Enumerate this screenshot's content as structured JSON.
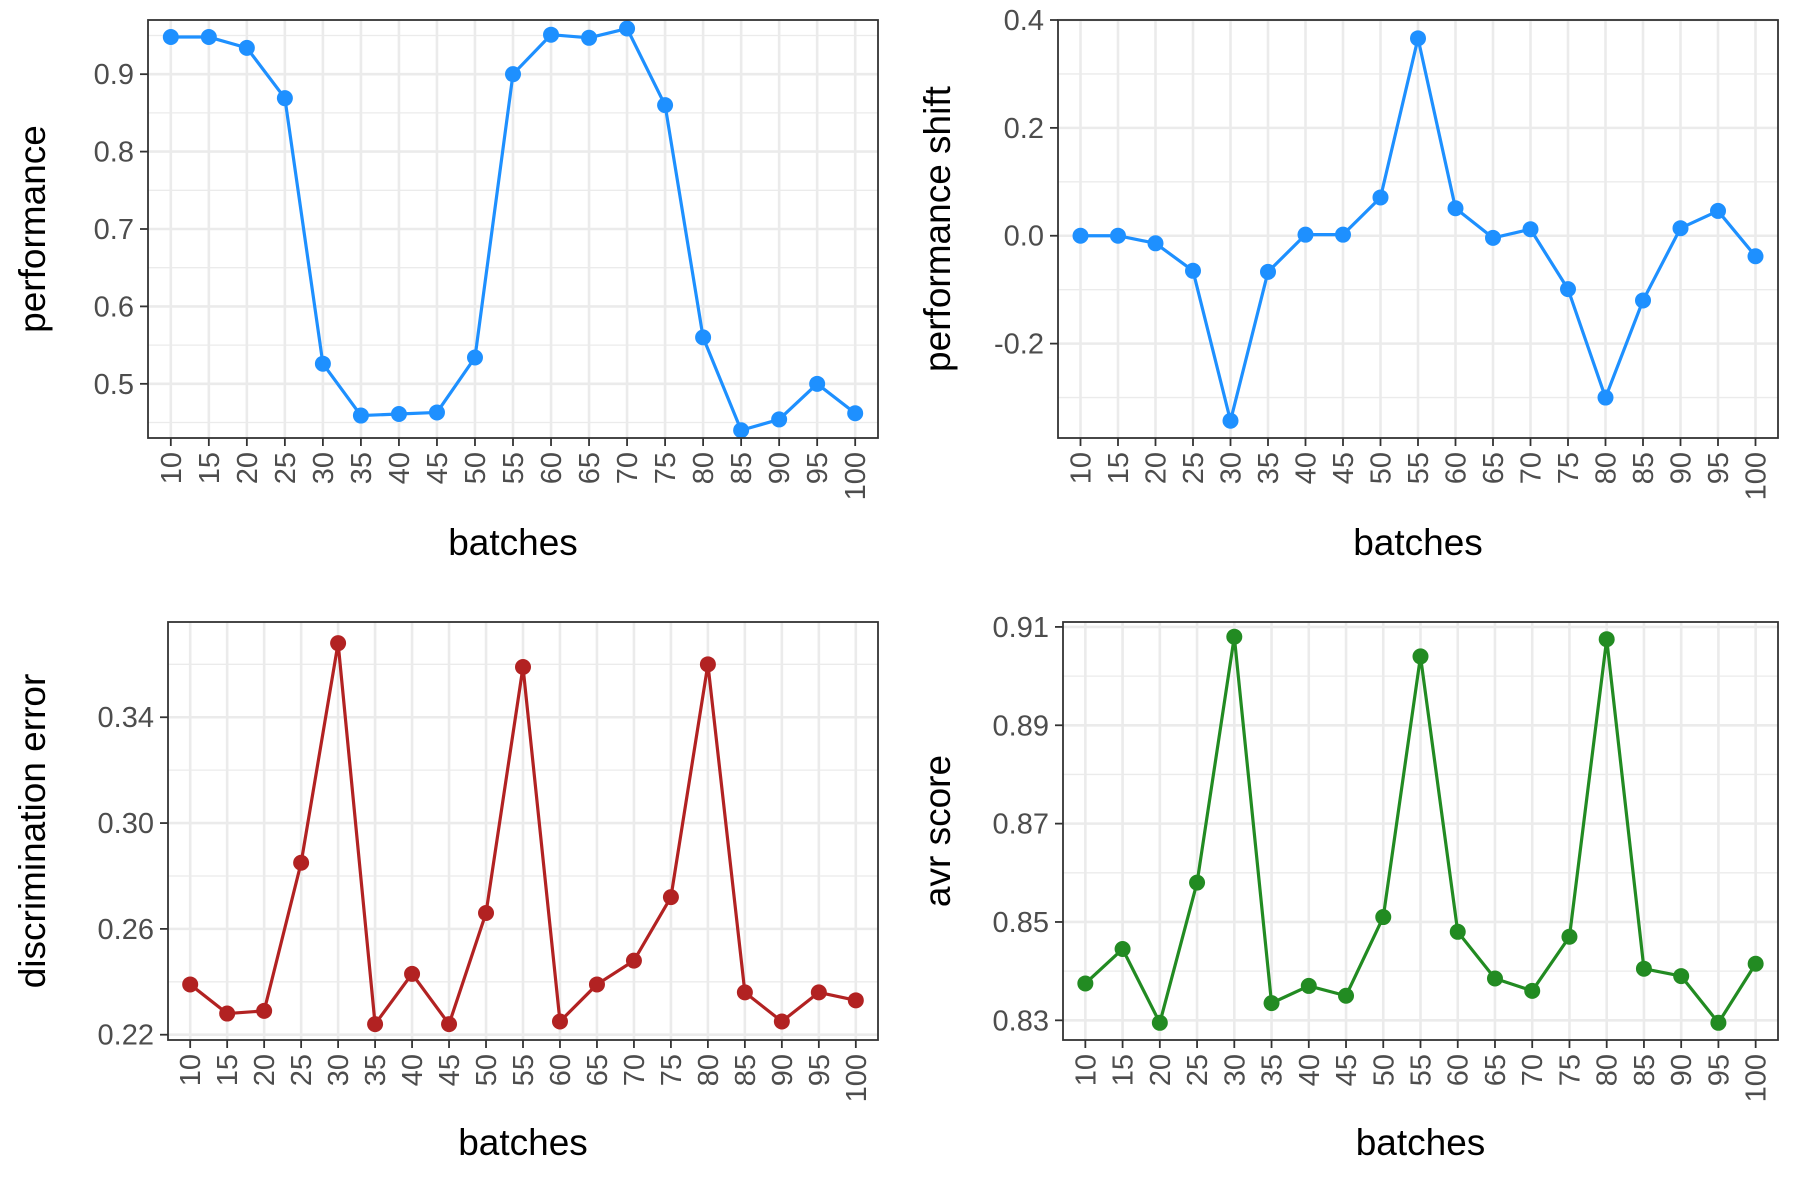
{
  "chart_data": [
    {
      "type": "line",
      "xlabel": "batches",
      "ylabel": "performance",
      "color": "#1e90ff",
      "categories": [
        "10",
        "15",
        "20",
        "25",
        "30",
        "35",
        "40",
        "45",
        "50",
        "55",
        "60",
        "65",
        "70",
        "75",
        "80",
        "85",
        "90",
        "95",
        "100"
      ],
      "values": [
        0.948,
        0.948,
        0.934,
        0.869,
        0.526,
        0.459,
        0.461,
        0.463,
        0.534,
        0.9,
        0.951,
        0.947,
        0.959,
        0.86,
        0.56,
        0.44,
        0.454,
        0.5,
        0.462
      ],
      "ylim": [
        0.43,
        0.97
      ],
      "yticks": [
        0.5,
        0.6,
        0.7,
        0.8,
        0.9
      ],
      "ytick_labels": [
        "0.5",
        "0.6",
        "0.7",
        "0.8",
        "0.9"
      ],
      "grid": true
    },
    {
      "type": "line",
      "xlabel": "batches",
      "ylabel": "performance shift",
      "color": "#1e90ff",
      "categories": [
        "10",
        "15",
        "20",
        "25",
        "30",
        "35",
        "40",
        "45",
        "50",
        "55",
        "60",
        "65",
        "70",
        "75",
        "80",
        "85",
        "90",
        "95",
        "100"
      ],
      "values": [
        0.0,
        0.0,
        -0.014,
        -0.065,
        -0.343,
        -0.067,
        0.002,
        0.002,
        0.071,
        0.366,
        0.051,
        -0.004,
        0.012,
        -0.099,
        -0.3,
        -0.12,
        0.014,
        0.046,
        -0.038
      ],
      "ylim": [
        -0.375,
        0.4
      ],
      "yticks": [
        -0.2,
        0.0,
        0.2,
        0.4
      ],
      "ytick_labels": [
        "-0.2",
        "0.0",
        "0.2",
        "0.4"
      ],
      "grid": true
    },
    {
      "type": "line",
      "xlabel": "batches",
      "ylabel": "discrimination error",
      "color": "#b22222",
      "categories": [
        "10",
        "15",
        "20",
        "25",
        "30",
        "35",
        "40",
        "45",
        "50",
        "55",
        "60",
        "65",
        "70",
        "75",
        "80",
        "85",
        "90",
        "95",
        "100"
      ],
      "values": [
        0.239,
        0.228,
        0.229,
        0.285,
        0.368,
        0.224,
        0.243,
        0.224,
        0.266,
        0.359,
        0.225,
        0.239,
        0.248,
        0.272,
        0.36,
        0.236,
        0.225,
        0.236,
        0.233
      ],
      "ylim": [
        0.218,
        0.376
      ],
      "yticks": [
        0.22,
        0.26,
        0.3,
        0.34
      ],
      "ytick_labels": [
        "0.22",
        "0.26",
        "0.30",
        "0.34"
      ],
      "grid": true
    },
    {
      "type": "line",
      "xlabel": "batches",
      "ylabel": "avr score",
      "color": "#228b22",
      "categories": [
        "10",
        "15",
        "20",
        "25",
        "30",
        "35",
        "40",
        "45",
        "50",
        "55",
        "60",
        "65",
        "70",
        "75",
        "80",
        "85",
        "90",
        "95",
        "100"
      ],
      "values": [
        0.8375,
        0.8445,
        0.8295,
        0.858,
        0.908,
        0.8335,
        0.837,
        0.835,
        0.851,
        0.904,
        0.848,
        0.8385,
        0.836,
        0.847,
        0.9075,
        0.8405,
        0.839,
        0.8295,
        0.8415
      ],
      "ylim": [
        0.826,
        0.911
      ],
      "yticks": [
        0.83,
        0.85,
        0.87,
        0.89,
        0.91
      ],
      "ytick_labels": [
        "0.83",
        "0.85",
        "0.87",
        "0.89",
        "0.91"
      ],
      "grid": true
    }
  ]
}
